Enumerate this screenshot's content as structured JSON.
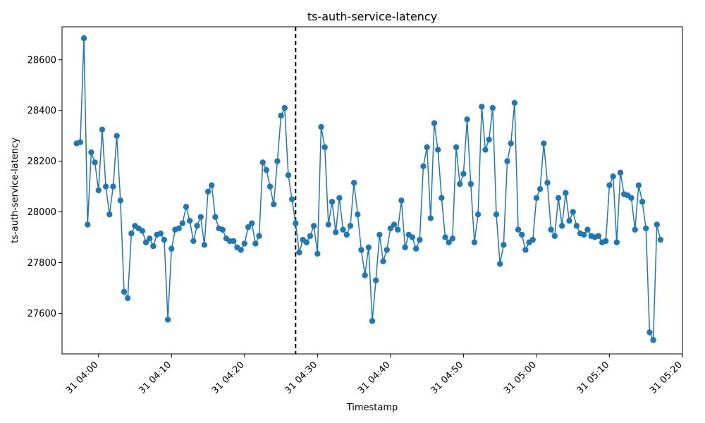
{
  "chart_data": {
    "type": "line",
    "title": "ts-auth-service-latency",
    "xlabel": "Timestamp",
    "ylabel": "ts-auth-service-latency",
    "x_start": "2024-05-31 03:57",
    "x_step_minutes": 0.5,
    "xlim": [
      "2024-05-31 03:55",
      "2024-05-31 05:20"
    ],
    "ylim": [
      27440,
      28730
    ],
    "x_ticks": [
      {
        "time": "2024-05-31 04:00",
        "label": "31 04:00"
      },
      {
        "time": "2024-05-31 04:10",
        "label": "31 04:10"
      },
      {
        "time": "2024-05-31 04:20",
        "label": "31 04:20"
      },
      {
        "time": "2024-05-31 04:30",
        "label": "31 04:30"
      },
      {
        "time": "2024-05-31 04:40",
        "label": "31 04:40"
      },
      {
        "time": "2024-05-31 04:50",
        "label": "31 04:50"
      },
      {
        "time": "2024-05-31 05:00",
        "label": "31 05:00"
      },
      {
        "time": "2024-05-31 05:10",
        "label": "31 05:10"
      },
      {
        "time": "2024-05-31 05:20",
        "label": "31 05:20"
      }
    ],
    "y_ticks": [
      27600,
      27800,
      28000,
      28200,
      28400,
      28600
    ],
    "grid": false,
    "vline": {
      "time": "2024-05-31 04:27",
      "style": "dashed",
      "color": "#000000"
    },
    "series": [
      {
        "color": "#1f77b4",
        "marker": "circle",
        "values": [
          28270,
          28275,
          28685,
          27950,
          28235,
          28195,
          28085,
          28325,
          28100,
          27990,
          28100,
          28300,
          28045,
          27685,
          27660,
          27915,
          27945,
          27935,
          27925,
          27880,
          27895,
          27865,
          27910,
          27915,
          27890,
          27575,
          27855,
          27930,
          27935,
          27955,
          28020,
          27965,
          27885,
          27945,
          27980,
          27870,
          28080,
          28105,
          27980,
          27935,
          27930,
          27895,
          27885,
          27885,
          27860,
          27850,
          27875,
          27940,
          27955,
          27875,
          27905,
          28195,
          28165,
          28100,
          28030,
          28200,
          28380,
          28410,
          28145,
          28050,
          27955,
          27840,
          27890,
          27880,
          27905,
          27945,
          27835,
          28335,
          28255,
          27950,
          28040,
          27920,
          28055,
          27930,
          27910,
          27945,
          28115,
          27990,
          27850,
          27750,
          27860,
          27570,
          27730,
          27910,
          27805,
          27850,
          27935,
          27950,
          27930,
          28045,
          27860,
          27910,
          27900,
          27855,
          27890,
          28180,
          28255,
          27975,
          28350,
          28245,
          28055,
          27900,
          27880,
          27895,
          28255,
          28110,
          28150,
          28365,
          28110,
          27880,
          27990,
          28415,
          28245,
          28285,
          28410,
          27990,
          27795,
          27870,
          28200,
          28270,
          28430,
          27930,
          27910,
          27850,
          27880,
          27890,
          28055,
          28090,
          28270,
          28115,
          27930,
          27905,
          28055,
          27945,
          28075,
          27965,
          28000,
          27945,
          27915,
          27910,
          27930,
          27905,
          27900,
          27905,
          27880,
          27885,
          28105,
          28140,
          27880,
          28155,
          28070,
          28065,
          28055,
          27930,
          28105,
          28040,
          27935,
          27525,
          27495,
          27950,
          27890
        ]
      }
    ]
  }
}
